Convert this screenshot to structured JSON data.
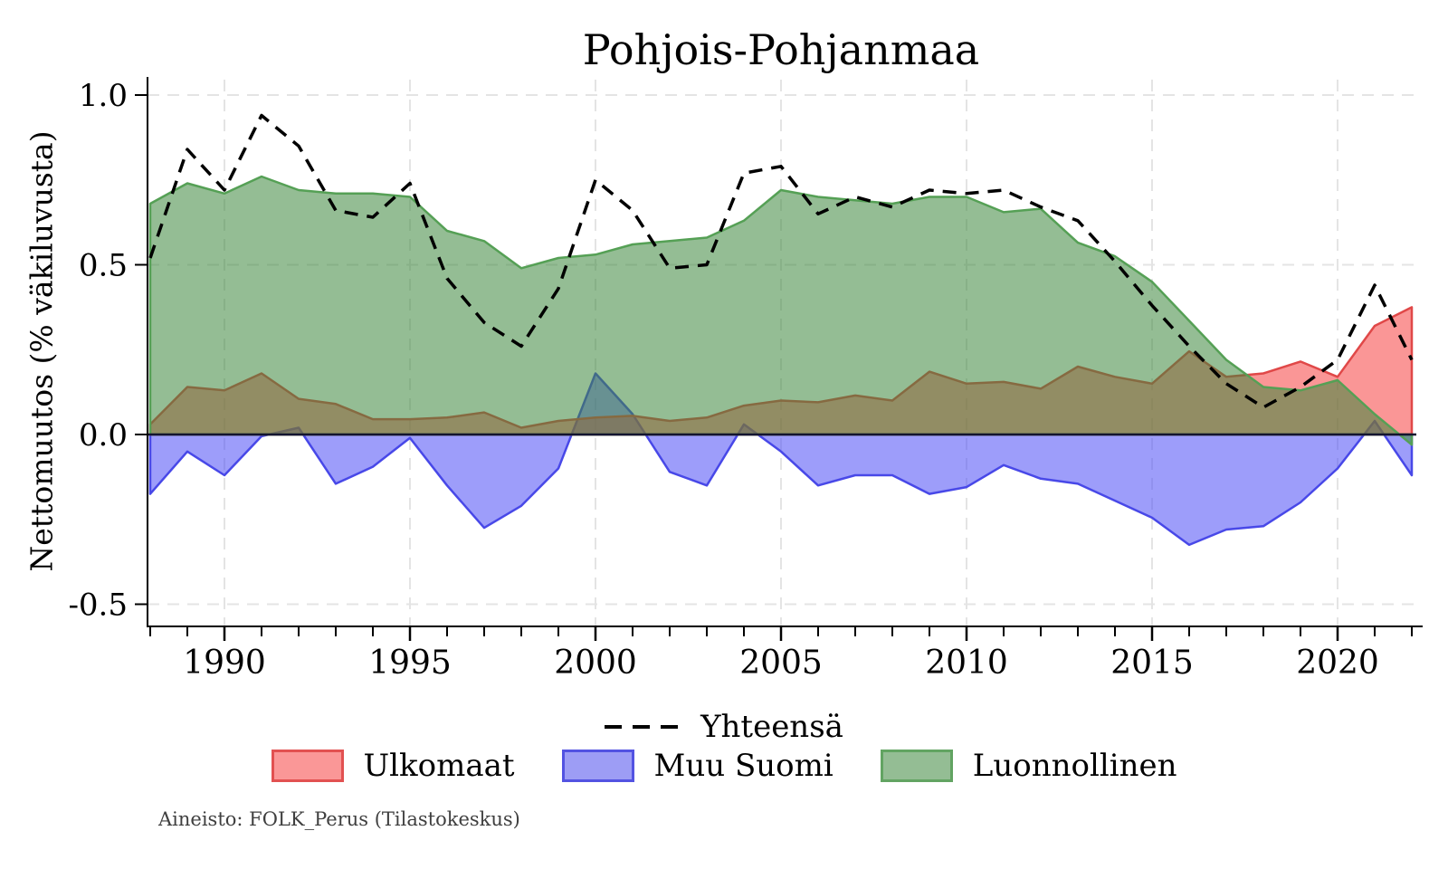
{
  "title": "Pohjois-Pohjanmaa",
  "y_axis": {
    "label": "Nettomuutos (% väkiluvusta)",
    "tick_labels": [
      "1.0",
      "0.5",
      "0.0",
      "-0.5"
    ],
    "tick_values": [
      1.0,
      0.5,
      0.0,
      -0.5
    ]
  },
  "x_axis": {
    "tick_labels": [
      "1990",
      "1995",
      "2000",
      "2005",
      "2010",
      "2015",
      "2020"
    ],
    "tick_values": [
      1990,
      1995,
      2000,
      2005,
      2010,
      2015,
      2020
    ],
    "minor_tick_start": 1988,
    "minor_tick_end": 2022
  },
  "legend": {
    "total": {
      "label": "Yhteensä",
      "color": "#000000"
    },
    "items": [
      {
        "label": "Ulkomaat",
        "fill": "#FA9797",
        "border": "#E25151"
      },
      {
        "label": "Muu Suomi",
        "fill": "#9D9DF5",
        "border": "#5353E2"
      },
      {
        "label": "Luonnollinen",
        "fill": "#94BD94",
        "border": "#62A462"
      }
    ]
  },
  "source_note": "Aineisto: FOLK_Perus (Tilastokeskus)",
  "chart_data": {
    "type": "area",
    "title": "Pohjois-Pohjanmaa",
    "ylabel": "Nettomuutos (% väkiluvusta)",
    "note": "Overlapping (non-stacked) semi-transparent areas drawn from zero; dashed line is the total net change",
    "x": [
      1988,
      1989,
      1990,
      1991,
      1992,
      1993,
      1994,
      1995,
      1996,
      1997,
      1998,
      1999,
      2000,
      2001,
      2002,
      2003,
      2004,
      2005,
      2006,
      2007,
      2008,
      2009,
      2010,
      2011,
      2012,
      2013,
      2014,
      2015,
      2016,
      2017,
      2018,
      2019,
      2020,
      2021,
      2022
    ],
    "series": [
      {
        "name": "Muu Suomi",
        "kind": "area",
        "base_color": "#4D4DF5",
        "border_color": "#4848E8",
        "opacity": 0.55,
        "values": [
          -0.175,
          -0.05,
          -0.12,
          -0.005,
          0.02,
          -0.145,
          -0.095,
          -0.01,
          -0.15,
          -0.275,
          -0.21,
          -0.1,
          0.18,
          0.06,
          -0.11,
          -0.15,
          0.03,
          -0.05,
          -0.15,
          -0.12,
          -0.12,
          -0.175,
          -0.155,
          -0.09,
          -0.13,
          -0.145,
          -0.195,
          -0.245,
          -0.325,
          -0.28,
          -0.27,
          -0.2,
          -0.1,
          0.04,
          -0.12
        ]
      },
      {
        "name": "Ulkomaat",
        "kind": "area",
        "base_color": "#F64040",
        "border_color": "#E04848",
        "opacity": 0.55,
        "values": [
          0.03,
          0.14,
          0.13,
          0.18,
          0.105,
          0.09,
          0.045,
          0.045,
          0.05,
          0.065,
          0.02,
          0.04,
          0.05,
          0.055,
          0.04,
          0.05,
          0.085,
          0.1,
          0.095,
          0.115,
          0.1,
          0.185,
          0.15,
          0.155,
          0.135,
          0.2,
          0.17,
          0.15,
          0.245,
          0.17,
          0.18,
          0.215,
          0.17,
          0.32,
          0.375
        ]
      },
      {
        "name": "Luonnollinen",
        "kind": "area",
        "base_color": "#3C873C",
        "border_color": "#55A055",
        "opacity": 0.55,
        "values": [
          0.68,
          0.74,
          0.71,
          0.76,
          0.72,
          0.71,
          0.71,
          0.7,
          0.6,
          0.57,
          0.49,
          0.52,
          0.53,
          0.56,
          0.57,
          0.58,
          0.63,
          0.72,
          0.7,
          0.69,
          0.68,
          0.7,
          0.7,
          0.655,
          0.665,
          0.565,
          0.525,
          0.45,
          0.335,
          0.22,
          0.14,
          0.13,
          0.16,
          0.06,
          -0.03
        ]
      },
      {
        "name": "Yhteensä",
        "kind": "dashed-line",
        "color": "#000000",
        "values": [
          0.52,
          0.84,
          0.72,
          0.94,
          0.85,
          0.66,
          0.64,
          0.74,
          0.46,
          0.33,
          0.26,
          0.43,
          0.75,
          0.66,
          0.49,
          0.5,
          0.77,
          0.79,
          0.65,
          0.7,
          0.67,
          0.72,
          0.71,
          0.72,
          0.67,
          0.63,
          0.51,
          0.38,
          0.26,
          0.15,
          0.08,
          0.14,
          0.22,
          0.44,
          0.22
        ]
      }
    ],
    "xlim": [
      1987.9,
      2022.3
    ],
    "ylim": [
      -0.565,
      1.053
    ],
    "grid": {
      "x_years": [
        1990,
        1995,
        2000,
        2005,
        2010,
        2015,
        2020
      ],
      "y_values": [
        1.0,
        0.5,
        0.0,
        -0.5
      ],
      "color": "#E4E4E4"
    },
    "zero_line_color": "#141430",
    "legend_position": "bottom"
  }
}
